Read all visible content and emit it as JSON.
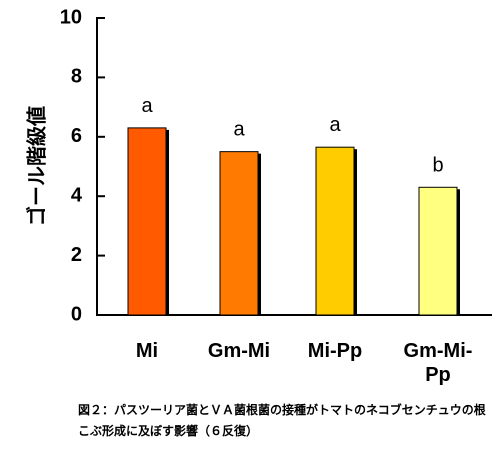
{
  "chart_data": {
    "type": "bar",
    "categories": [
      "Mi",
      "Gm-Mi",
      "Mi-Pp",
      "Gm-Mi-\nPp"
    ],
    "values": [
      6.3,
      5.5,
      5.65,
      4.3
    ],
    "data_labels": [
      "a",
      "a",
      "a",
      "b"
    ],
    "colors": [
      "#ff5a00",
      "#ff7a00",
      "#ffcc00",
      "#ffff80"
    ],
    "ylabel": "ゴール階級値",
    "ylim": [
      0,
      10
    ],
    "yticks": [
      0,
      2,
      4,
      6,
      8,
      10
    ],
    "grid": false
  },
  "caption": "図２：パスツーリア菌とＶＡ菌根菌の接種がトマトのネコブセンチュウの根こぶ形成に及ぼす影響（６反復）"
}
